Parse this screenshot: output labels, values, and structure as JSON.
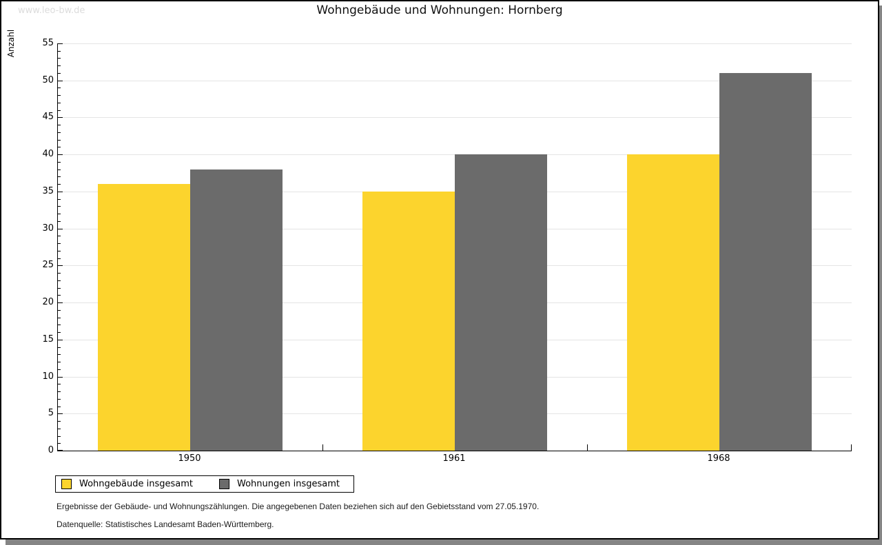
{
  "watermark": "www.leo-bw.de",
  "title": "Wohngebäude und Wohnungen: Hornberg",
  "chart_data": {
    "type": "bar",
    "categories": [
      "1950",
      "1961",
      "1968"
    ],
    "series": [
      {
        "name": "Wohngebäude insgesamt",
        "color": "#FCD42D",
        "values": [
          36,
          35,
          40
        ]
      },
      {
        "name": "Wohnungen insgesamt",
        "color": "#6B6B6B",
        "values": [
          38,
          40,
          51
        ]
      }
    ],
    "title": "Wohngebäude und Wohnungen: Hornberg",
    "xlabel": "",
    "ylabel": "Anzahl",
    "ylim": [
      0,
      55
    ],
    "ytick_step": 5,
    "minor_tick_step": 1,
    "grid": true,
    "legend_position": "bottom-left",
    "gridline_color": "#e4e4e4",
    "axis_color": "#000000"
  },
  "footnotes": {
    "line1": "Ergebnisse der Gebäude- und Wohnungszählungen. Die angegebenen Daten beziehen sich auf den Gebietsstand vom 27.05.1970.",
    "line2": "Datenquelle: Statistisches Landesamt Baden-Württemberg."
  }
}
